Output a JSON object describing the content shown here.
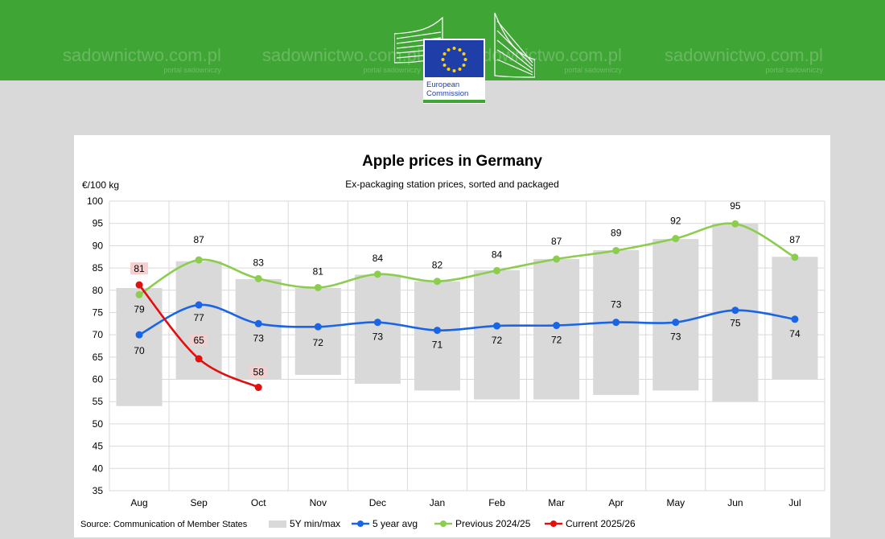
{
  "header": {
    "watermark_text": "sadownictwo.com.pl",
    "watermark_sub": "portal sadowniczy",
    "logo_line1": "European",
    "logo_line2": "Commission",
    "band_color": "#3fa535"
  },
  "chart_data": {
    "type": "line",
    "title": "Apple prices in Germany",
    "subtitle": "Ex-packaging station prices, sorted and packaged",
    "ylabel": "€/100 kg",
    "xlabel": "",
    "ylim": [
      35,
      100
    ],
    "yticks": [
      35,
      40,
      45,
      50,
      55,
      60,
      65,
      70,
      75,
      80,
      85,
      90,
      95,
      100
    ],
    "categories": [
      "Aug",
      "Sep",
      "Oct",
      "Nov",
      "Dec",
      "Jan",
      "Feb",
      "Mar",
      "Apr",
      "May",
      "Jun",
      "Jul"
    ],
    "range_band": {
      "name": "5Y min/max",
      "min": [
        54,
        60,
        60,
        61,
        59,
        57.5,
        55.5,
        55.5,
        56.5,
        57.5,
        55,
        60
      ],
      "max": [
        80.5,
        86.5,
        82.5,
        80.5,
        83.5,
        82,
        84.5,
        87,
        89,
        91.5,
        95,
        87.5
      ]
    },
    "series": [
      {
        "name": "5 year avg",
        "color": "#1a64e6",
        "values": [
          70,
          76.7,
          72.5,
          71.8,
          72.8,
          71,
          72,
          72.1,
          72.8,
          72.8,
          75.5,
          73.5
        ],
        "labels": [
          "70",
          "77",
          "73",
          "72",
          "73",
          "71",
          "72",
          "72",
          "73",
          "73",
          "75",
          "74"
        ]
      },
      {
        "name": "Previous 2024/25",
        "color": "#8ccc4f",
        "values": [
          79,
          86.8,
          82.6,
          80.6,
          83.6,
          82,
          84.4,
          87,
          88.9,
          91.6,
          94.9,
          87.4
        ],
        "labels": [
          "79",
          "87",
          "83",
          "81",
          "84",
          "82",
          "84",
          "87",
          "89",
          "92",
          "95",
          "87"
        ]
      },
      {
        "name": "Current 2025/26",
        "color": "#e01010",
        "values": [
          81.2,
          64.6,
          58.2,
          null,
          null,
          null,
          null,
          null,
          null,
          null,
          null,
          null
        ],
        "labels": [
          "81",
          "65",
          "58"
        ]
      }
    ],
    "source": "Source: Communication  of Member States",
    "legend": [
      "5Y min/max",
      "5 year avg",
      "Previous 2024/25",
      "Current 2025/26"
    ],
    "legend_position": "bottom"
  }
}
